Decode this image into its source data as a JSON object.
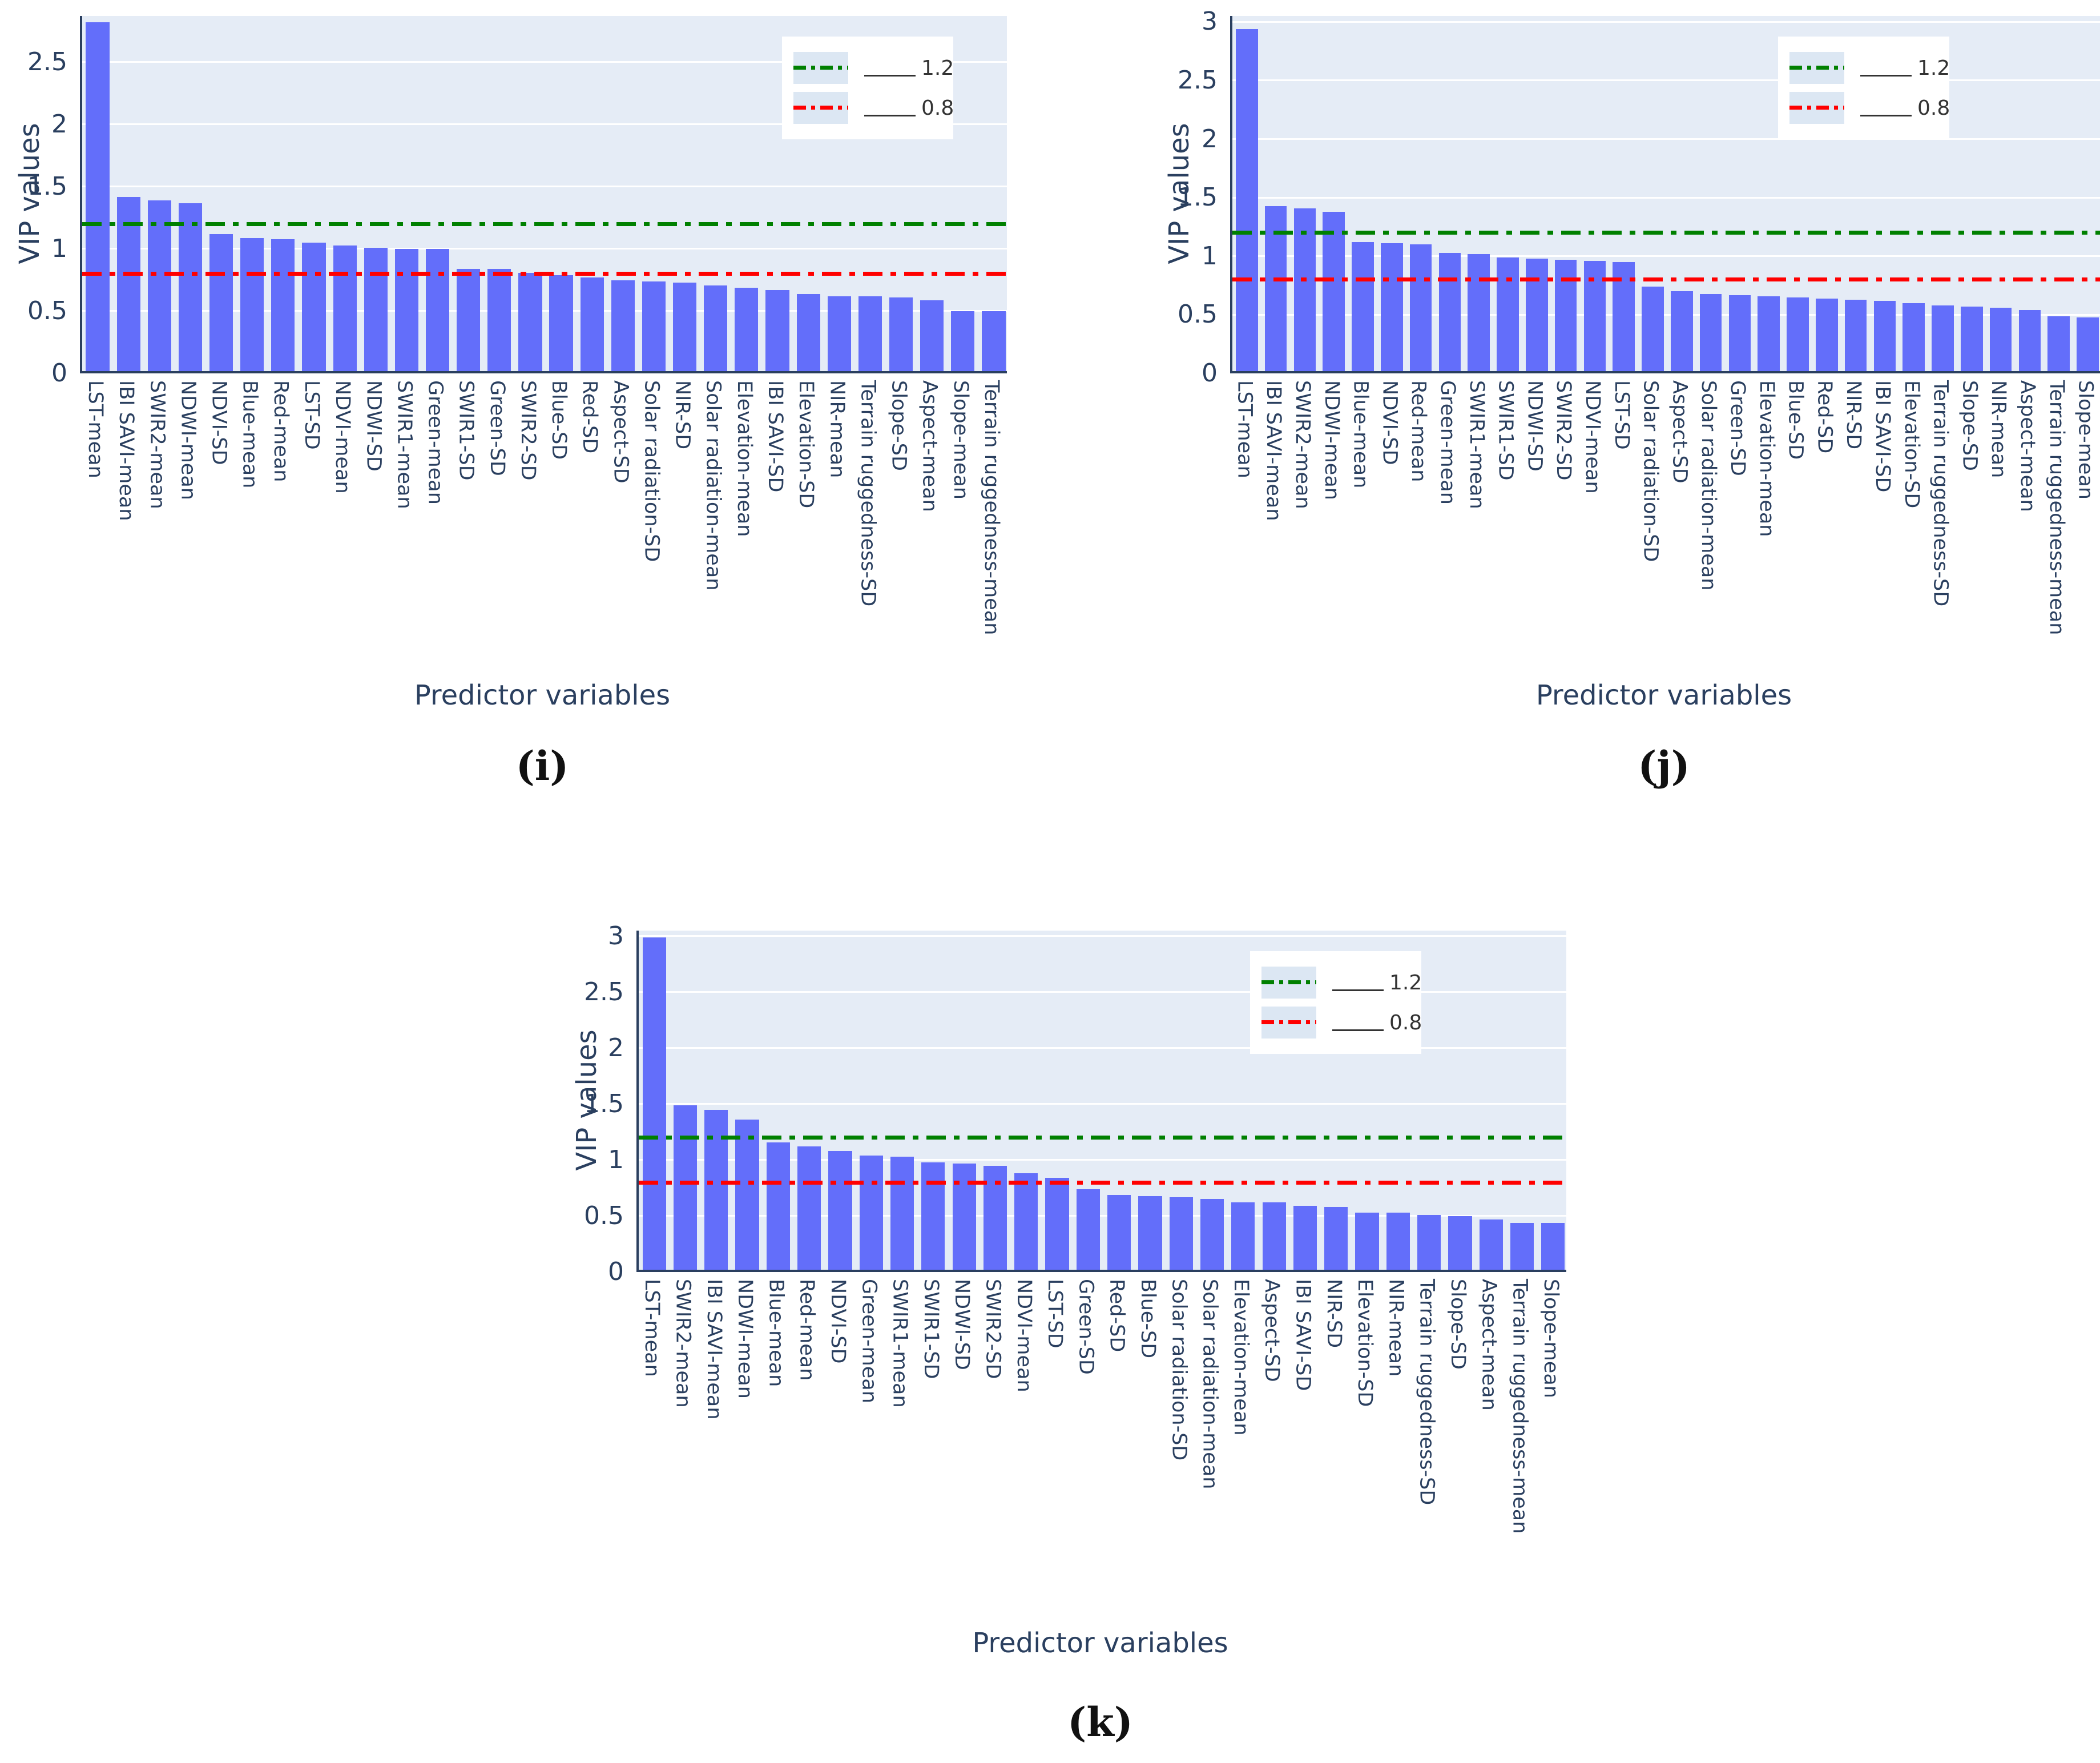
{
  "colors": {
    "bar": "#636efa",
    "plot_background": "#e5ecf6",
    "gridline": "#ffffff",
    "axis_text": "#2a3f5f",
    "spine": "#2a3f5f",
    "legend_text": "#333333",
    "threshold_high": "#008000",
    "threshold_low": "#ff0000"
  },
  "chart_data": [
    {
      "type": "bar",
      "caption": "(i)",
      "ylabel": "VIP values",
      "xlabel": "Predictor variables",
      "yticks": [
        "0",
        "0.5",
        "1",
        "1.5",
        "2",
        "2.5"
      ],
      "ylim": [
        0,
        2.87
      ],
      "grid": true,
      "legend_position": "top-right",
      "thresholds": [
        {
          "label": "1.2",
          "value": 1.2,
          "color": "#008000"
        },
        {
          "label": "0.8",
          "value": 0.8,
          "color": "#ff0000"
        }
      ],
      "categories": [
        "LST-mean",
        "IBI SAVI-mean",
        "SWIR2-mean",
        "NDWI-mean",
        "NDVI-SD",
        "Blue-mean",
        "Red-mean",
        "LST-SD",
        "NDVI-mean",
        "NDWI-SD",
        "SWIR1-mean",
        "Green-mean",
        "SWIR1-SD",
        "Green-SD",
        "SWIR2-SD",
        "Blue-SD",
        "Red-SD",
        "Aspect-SD",
        "Solar radiation-SD",
        "NIR-SD",
        "Solar radiation-mean",
        "Elevation-mean",
        "IBI SAVI-SD",
        "Elevation-SD",
        "NIR-mean",
        "Terrain ruggedness-SD",
        "Slope-SD",
        "Aspect-mean",
        "Slope-mean",
        "Terrain ruggedness-mean"
      ],
      "values": [
        2.8,
        1.4,
        1.37,
        1.35,
        1.1,
        1.07,
        1.06,
        1.03,
        1.01,
        0.99,
        0.98,
        0.98,
        0.82,
        0.82,
        0.79,
        0.77,
        0.75,
        0.73,
        0.72,
        0.71,
        0.69,
        0.67,
        0.65,
        0.62,
        0.6,
        0.6,
        0.59,
        0.57,
        0.48,
        0.48
      ]
    },
    {
      "type": "bar",
      "caption": "(j)",
      "ylabel": "VIP values",
      "xlabel": "Predictor variables",
      "yticks": [
        "0",
        "0.5",
        "1",
        "1.5",
        "2",
        "2.5",
        "3"
      ],
      "ylim": [
        0,
        3.05
      ],
      "grid": true,
      "legend_position": "top-right",
      "thresholds": [
        {
          "label": "1.2",
          "value": 1.2,
          "color": "#008000"
        },
        {
          "label": "0.8",
          "value": 0.8,
          "color": "#ff0000"
        }
      ],
      "categories": [
        "LST-mean",
        "IBI SAVI-mean",
        "SWIR2-mean",
        "NDWI-mean",
        "Blue-mean",
        "NDVI-SD",
        "Red-mean",
        "Green-mean",
        "SWIR1-mean",
        "SWIR1-SD",
        "NDWI-SD",
        "SWIR2-SD",
        "NDVI-mean",
        "LST-SD",
        "Solar radiation-SD",
        "Aspect-SD",
        "Solar radiation-mean",
        "Green-SD",
        "Elevation-mean",
        "Blue-SD",
        "Red-SD",
        "NIR-SD",
        "IBI SAVI-SD",
        "Elevation-SD",
        "Terrain ruggedness-SD",
        "Slope-SD",
        "NIR-mean",
        "Aspect-mean",
        "Terrain ruggedness-mean",
        "Slope-mean"
      ],
      "values": [
        2.92,
        1.41,
        1.39,
        1.36,
        1.1,
        1.09,
        1.08,
        1.01,
        1.0,
        0.97,
        0.96,
        0.95,
        0.94,
        0.93,
        0.72,
        0.68,
        0.66,
        0.65,
        0.64,
        0.63,
        0.62,
        0.61,
        0.6,
        0.58,
        0.56,
        0.55,
        0.54,
        0.52,
        0.47,
        0.46
      ]
    },
    {
      "type": "bar",
      "caption": "(k)",
      "ylabel": "VIP values",
      "xlabel": "Predictor variables",
      "yticks": [
        "0",
        "0.5",
        "1",
        "1.5",
        "2",
        "2.5",
        "3"
      ],
      "ylim": [
        0,
        3.05
      ],
      "grid": true,
      "legend_position": "top-right",
      "thresholds": [
        {
          "label": "1.2",
          "value": 1.2,
          "color": "#008000"
        },
        {
          "label": "0.8",
          "value": 0.8,
          "color": "#ff0000"
        }
      ],
      "categories": [
        "LST-mean",
        "SWIR2-mean",
        "IBI SAVI-mean",
        "NDWI-mean",
        "Blue-mean",
        "Red-mean",
        "NDVI-SD",
        "Green-mean",
        "SWIR1-mean",
        "SWIR1-SD",
        "NDWI-SD",
        "SWIR2-SD",
        "NDVI-mean",
        "LST-SD",
        "Green-SD",
        "Red-SD",
        "Blue-SD",
        "Solar radiation-SD",
        "Solar radiation-mean",
        "Elevation-mean",
        "Aspect-SD",
        "IBI SAVI-SD",
        "NIR-SD",
        "Elevation-SD",
        "NIR-mean",
        "Terrain ruggedness-SD",
        "Slope-SD",
        "Aspect-mean",
        "Terrain ruggedness-mean",
        "Slope-mean"
      ],
      "values": [
        2.97,
        1.47,
        1.43,
        1.34,
        1.14,
        1.1,
        1.06,
        1.02,
        1.01,
        0.96,
        0.95,
        0.93,
        0.86,
        0.82,
        0.72,
        0.67,
        0.66,
        0.65,
        0.63,
        0.6,
        0.6,
        0.57,
        0.56,
        0.51,
        0.51,
        0.49,
        0.48,
        0.45,
        0.42,
        0.42
      ]
    }
  ]
}
